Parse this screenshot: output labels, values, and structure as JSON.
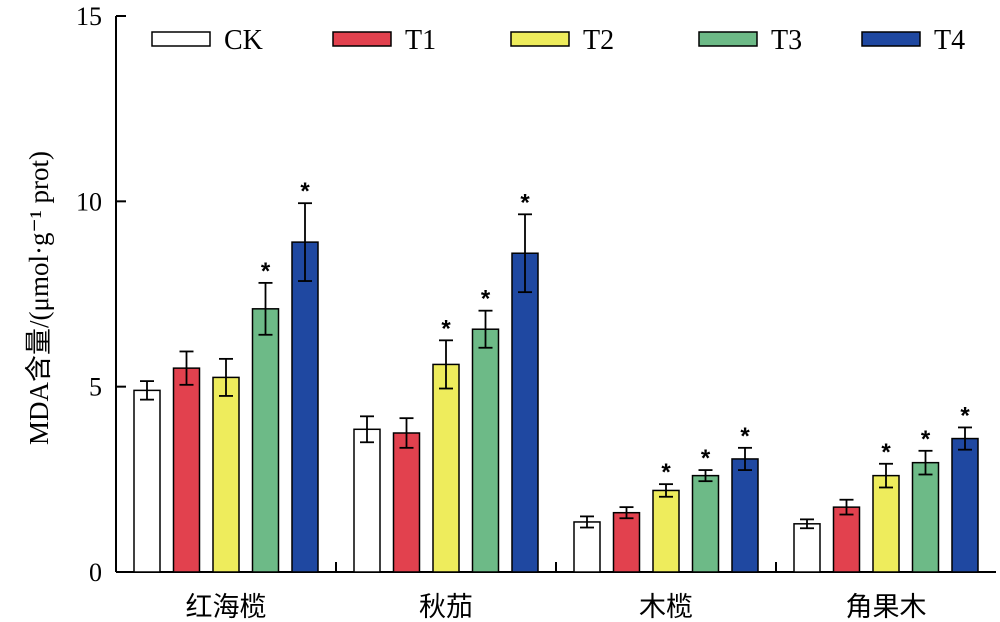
{
  "chart_data": {
    "type": "bar",
    "ylabel": "MDA含量/(μmol·g⁻¹ prot)",
    "ylim": [
      0,
      15
    ],
    "yticks": [
      0,
      5,
      10,
      15
    ],
    "categories": [
      "红海榄",
      "秋茄",
      "木榄",
      "角果木"
    ],
    "legend_position": "top",
    "grid": false,
    "significance_marker": "*",
    "series": [
      {
        "name": "CK",
        "color": "#ffffff",
        "values": [
          4.9,
          3.85,
          1.35,
          1.3
        ],
        "errors": [
          0.25,
          0.35,
          0.15,
          0.12
        ],
        "significant": [
          false,
          false,
          false,
          false
        ]
      },
      {
        "name": "T1",
        "color": "#e2414e",
        "values": [
          5.5,
          3.75,
          1.6,
          1.75
        ],
        "errors": [
          0.45,
          0.4,
          0.15,
          0.2
        ],
        "significant": [
          false,
          false,
          false,
          false
        ]
      },
      {
        "name": "T2",
        "color": "#eeec5c",
        "values": [
          5.25,
          5.6,
          2.2,
          2.6
        ],
        "errors": [
          0.5,
          0.65,
          0.17,
          0.32
        ],
        "significant": [
          false,
          true,
          true,
          true
        ]
      },
      {
        "name": "T3",
        "color": "#6dba87",
        "values": [
          7.1,
          6.55,
          2.6,
          2.95
        ],
        "errors": [
          0.7,
          0.5,
          0.15,
          0.32
        ],
        "significant": [
          true,
          true,
          true,
          true
        ]
      },
      {
        "name": "T4",
        "color": "#1f48a1",
        "values": [
          8.9,
          8.6,
          3.05,
          3.6
        ],
        "errors": [
          1.05,
          1.05,
          0.3,
          0.3
        ],
        "significant": [
          true,
          true,
          true,
          true
        ]
      }
    ]
  }
}
